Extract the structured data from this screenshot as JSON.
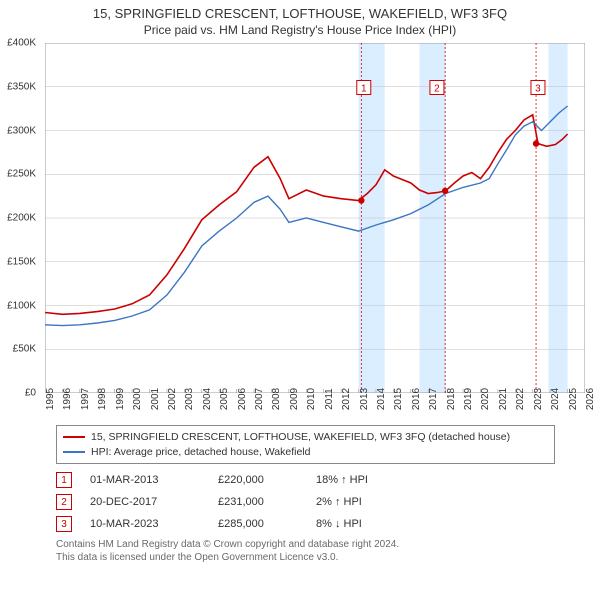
{
  "title_main": "15, SPRINGFIELD CRESCENT, LOFTHOUSE, WAKEFIELD, WF3 3FQ",
  "title_sub": "Price paid vs. HM Land Registry's House Price Index (HPI)",
  "chart": {
    "type": "line",
    "background_color": "#ffffff",
    "grid_color": "#bfbfbf",
    "shade_color": "#dbeeff",
    "border_color": "#9a9a9a",
    "xlim": [
      1995,
      2026
    ],
    "ylim": [
      0,
      400000
    ],
    "ytick_step": 50000,
    "y_ticks": [
      {
        "v": 0,
        "label": "£0"
      },
      {
        "v": 50000,
        "label": "£50K"
      },
      {
        "v": 100000,
        "label": "£100K"
      },
      {
        "v": 150000,
        "label": "£150K"
      },
      {
        "v": 200000,
        "label": "£200K"
      },
      {
        "v": 250000,
        "label": "£250K"
      },
      {
        "v": 300000,
        "label": "£300K"
      },
      {
        "v": 350000,
        "label": "£350K"
      },
      {
        "v": 400000,
        "label": "£400K"
      }
    ],
    "x_ticks": [
      1995,
      1996,
      1997,
      1998,
      1999,
      2000,
      2001,
      2002,
      2003,
      2004,
      2005,
      2006,
      2007,
      2008,
      2009,
      2010,
      2011,
      2012,
      2013,
      2014,
      2015,
      2016,
      2017,
      2018,
      2019,
      2020,
      2021,
      2022,
      2023,
      2024,
      2025,
      2026
    ],
    "shaded_ranges": [
      [
        2013.0,
        2014.5
      ],
      [
        2016.5,
        2018.0
      ],
      [
        2023.9,
        2025.0
      ]
    ],
    "series": [
      {
        "name": "property",
        "color": "#cc0000",
        "width": 1.6,
        "data": [
          [
            1995,
            92000
          ],
          [
            1996,
            90000
          ],
          [
            1997,
            91000
          ],
          [
            1998,
            93000
          ],
          [
            1999,
            96000
          ],
          [
            2000,
            102000
          ],
          [
            2001,
            112000
          ],
          [
            2002,
            135000
          ],
          [
            2003,
            165000
          ],
          [
            2004,
            198000
          ],
          [
            2005,
            215000
          ],
          [
            2006,
            230000
          ],
          [
            2007,
            258000
          ],
          [
            2007.8,
            270000
          ],
          [
            2008.5,
            245000
          ],
          [
            2009,
            222000
          ],
          [
            2010,
            232000
          ],
          [
            2011,
            225000
          ],
          [
            2012,
            222000
          ],
          [
            2013,
            220000
          ],
          [
            2013.5,
            228000
          ],
          [
            2014,
            238000
          ],
          [
            2014.5,
            255000
          ],
          [
            2015,
            248000
          ],
          [
            2015.5,
            244000
          ],
          [
            2016,
            240000
          ],
          [
            2016.5,
            232000
          ],
          [
            2017,
            228000
          ],
          [
            2017.5,
            229000
          ],
          [
            2018,
            231000
          ],
          [
            2018.5,
            240000
          ],
          [
            2019,
            248000
          ],
          [
            2019.5,
            252000
          ],
          [
            2020,
            245000
          ],
          [
            2020.5,
            258000
          ],
          [
            2021,
            275000
          ],
          [
            2021.5,
            290000
          ],
          [
            2022,
            300000
          ],
          [
            2022.5,
            312000
          ],
          [
            2023,
            318000
          ],
          [
            2023.3,
            285000
          ],
          [
            2023.8,
            282000
          ],
          [
            2024.3,
            284000
          ],
          [
            2024.7,
            290000
          ],
          [
            2025,
            296000
          ]
        ]
      },
      {
        "name": "hpi",
        "color": "#3a76c2",
        "width": 1.4,
        "data": [
          [
            1995,
            78000
          ],
          [
            1996,
            77000
          ],
          [
            1997,
            78000
          ],
          [
            1998,
            80000
          ],
          [
            1999,
            83000
          ],
          [
            2000,
            88000
          ],
          [
            2001,
            95000
          ],
          [
            2002,
            112000
          ],
          [
            2003,
            138000
          ],
          [
            2004,
            168000
          ],
          [
            2005,
            185000
          ],
          [
            2006,
            200000
          ],
          [
            2007,
            218000
          ],
          [
            2007.8,
            225000
          ],
          [
            2008.5,
            210000
          ],
          [
            2009,
            195000
          ],
          [
            2010,
            200000
          ],
          [
            2011,
            195000
          ],
          [
            2012,
            190000
          ],
          [
            2013,
            185000
          ],
          [
            2014,
            192000
          ],
          [
            2015,
            198000
          ],
          [
            2016,
            205000
          ],
          [
            2017,
            215000
          ],
          [
            2018,
            228000
          ],
          [
            2019,
            235000
          ],
          [
            2020,
            240000
          ],
          [
            2020.5,
            245000
          ],
          [
            2021,
            262000
          ],
          [
            2021.5,
            278000
          ],
          [
            2022,
            295000
          ],
          [
            2022.5,
            305000
          ],
          [
            2023,
            310000
          ],
          [
            2023.5,
            300000
          ],
          [
            2024,
            310000
          ],
          [
            2024.5,
            320000
          ],
          [
            2025,
            328000
          ]
        ]
      }
    ],
    "marker_color": "#cc0000",
    "markers": [
      {
        "n": "1",
        "x": 2013.16,
        "y": 220000,
        "label_x": 2013.3,
        "label_y": 348000
      },
      {
        "n": "2",
        "x": 2017.97,
        "y": 231000,
        "label_x": 2017.5,
        "label_y": 348000
      },
      {
        "n": "3",
        "x": 2023.19,
        "y": 285000,
        "label_x": 2023.3,
        "label_y": 348000
      }
    ]
  },
  "legend": {
    "series1_color": "#cc0000",
    "series1_label": "15, SPRINGFIELD CRESCENT, LOFTHOUSE, WAKEFIELD, WF3 3FQ (detached house)",
    "series2_color": "#3a76c2",
    "series2_label": "HPI: Average price, detached house, Wakefield"
  },
  "events": [
    {
      "n": "1",
      "date": "01-MAR-2013",
      "price": "£220,000",
      "delta": "18% ↑ HPI"
    },
    {
      "n": "2",
      "date": "20-DEC-2017",
      "price": "£231,000",
      "delta": "2% ↑ HPI"
    },
    {
      "n": "3",
      "date": "10-MAR-2023",
      "price": "£285,000",
      "delta": "8% ↓ HPI"
    }
  ],
  "footer_line1": "Contains HM Land Registry data © Crown copyright and database right 2024.",
  "footer_line2": "This data is licensed under the Open Government Licence v3.0."
}
